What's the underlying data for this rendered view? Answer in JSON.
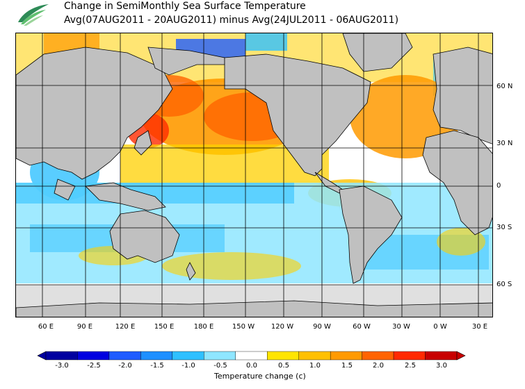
{
  "header": {
    "title_line1": "Change in SemiMonthly Sea Surface Temperature",
    "title_line2": "Avg(07AUG2011 - 20AUG2011) minus Avg(24JUL2011 - 06AUG2011)"
  },
  "map": {
    "lat_labels": [
      "60 N",
      "30 N",
      "0",
      "30 S",
      "60 S"
    ],
    "lon_labels": [
      "60 E",
      "90 E",
      "120 E",
      "150 E",
      "180 E",
      "150 W",
      "120 W",
      "90 W",
      "60 W",
      "30 W",
      "0 W",
      "30 E"
    ]
  },
  "colorbar": {
    "title": "Temperature change  (c)",
    "tick_labels": [
      "-3.0",
      "-2.5",
      "-2.0",
      "-1.5",
      "-1.0",
      "-0.5",
      "0.0",
      "0.5",
      "1.0",
      "1.5",
      "2.0",
      "2.5",
      "3.0"
    ],
    "colors": [
      "#0000a0",
      "#0000e0",
      "#1f5cff",
      "#1e90ff",
      "#2fc0ff",
      "#8fe6ff",
      "#ffffff",
      "#ffe500",
      "#ffc000",
      "#ff9a00",
      "#ff6400",
      "#ff2a00",
      "#c80000"
    ],
    "land_color": "#c0c0c0",
    "ice_color": "#e0e0e0"
  }
}
